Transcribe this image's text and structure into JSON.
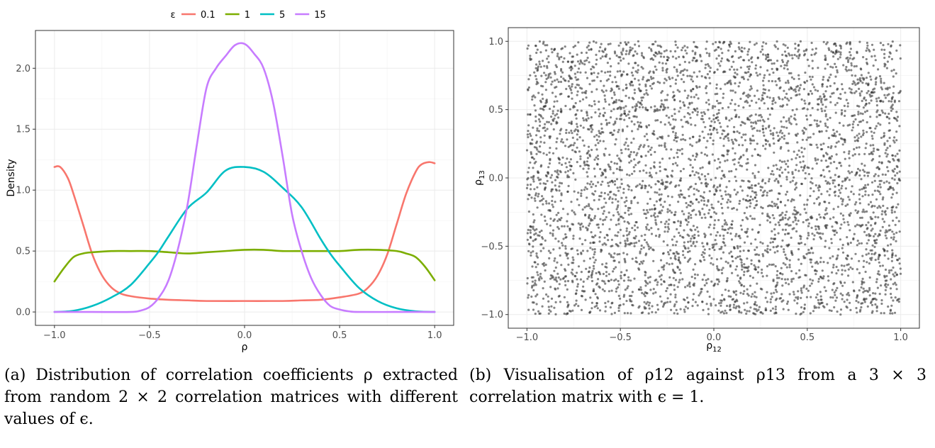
{
  "chart_data": [
    {
      "type": "line",
      "title": "",
      "xlabel": "ρ",
      "ylabel": "Density",
      "xlim": [
        -1.1,
        1.1
      ],
      "ylim": [
        -0.11,
        2.31
      ],
      "xticks": [
        -1.0,
        -0.5,
        0.0,
        0.5,
        1.0
      ],
      "xtick_labels": [
        "-1.0",
        "-0.5",
        "0.0",
        "0.5",
        "1.0"
      ],
      "yticks": [
        0.0,
        0.5,
        1.0,
        1.5,
        2.0
      ],
      "ytick_labels": [
        "0.0",
        "0.5",
        "1.0",
        "1.5",
        "2.0"
      ],
      "grid": true,
      "legend": {
        "title": "ε",
        "placement": "top",
        "labels": [
          "0.1",
          "1",
          "5",
          "15"
        ]
      },
      "series": [
        {
          "name": "0.1",
          "color": "#F8766D",
          "x": [
            -1.0,
            -0.97,
            -0.93,
            -0.9,
            -0.85,
            -0.8,
            -0.75,
            -0.7,
            -0.65,
            -0.6,
            -0.5,
            -0.4,
            -0.3,
            -0.2,
            0.0,
            0.2,
            0.3,
            0.4,
            0.5,
            0.6,
            0.65,
            0.7,
            0.75,
            0.8,
            0.85,
            0.9,
            0.93,
            0.97,
            1.0
          ],
          "y": [
            1.19,
            1.19,
            1.1,
            0.97,
            0.72,
            0.47,
            0.3,
            0.2,
            0.15,
            0.13,
            0.11,
            0.1,
            0.095,
            0.09,
            0.09,
            0.09,
            0.095,
            0.1,
            0.12,
            0.15,
            0.2,
            0.3,
            0.47,
            0.72,
            0.97,
            1.15,
            1.21,
            1.23,
            1.22
          ]
        },
        {
          "name": "1",
          "color": "#7CAE00",
          "x": [
            -1.0,
            -0.95,
            -0.9,
            -0.85,
            -0.8,
            -0.7,
            -0.6,
            -0.5,
            -0.4,
            -0.3,
            -0.2,
            -0.1,
            0.0,
            0.1,
            0.2,
            0.3,
            0.4,
            0.5,
            0.6,
            0.7,
            0.8,
            0.85,
            0.9,
            0.95,
            1.0
          ],
          "y": [
            0.25,
            0.36,
            0.45,
            0.48,
            0.49,
            0.5,
            0.5,
            0.5,
            0.49,
            0.48,
            0.49,
            0.5,
            0.51,
            0.51,
            0.5,
            0.5,
            0.5,
            0.5,
            0.51,
            0.51,
            0.5,
            0.48,
            0.45,
            0.37,
            0.26
          ]
        },
        {
          "name": "5",
          "color": "#00BFC4",
          "x": [
            -1.0,
            -0.9,
            -0.8,
            -0.7,
            -0.6,
            -0.5,
            -0.45,
            -0.4,
            -0.3,
            -0.2,
            -0.1,
            0.0,
            0.1,
            0.2,
            0.3,
            0.4,
            0.45,
            0.5,
            0.6,
            0.7,
            0.8,
            0.9,
            1.0
          ],
          "y": [
            0.0,
            0.01,
            0.05,
            0.12,
            0.22,
            0.4,
            0.5,
            0.62,
            0.85,
            0.98,
            1.16,
            1.19,
            1.15,
            1.02,
            0.86,
            0.6,
            0.48,
            0.38,
            0.2,
            0.09,
            0.03,
            0.005,
            0.0
          ]
        },
        {
          "name": "15",
          "color": "#C77CFF",
          "x": [
            -1.0,
            -0.8,
            -0.6,
            -0.55,
            -0.5,
            -0.45,
            -0.4,
            -0.35,
            -0.3,
            -0.25,
            -0.2,
            -0.15,
            -0.1,
            -0.05,
            0.0,
            0.05,
            0.1,
            0.15,
            0.2,
            0.25,
            0.3,
            0.35,
            0.4,
            0.45,
            0.5,
            0.55,
            0.6,
            0.8,
            1.0
          ],
          "y": [
            0.0,
            0.0,
            0.0,
            0.01,
            0.04,
            0.12,
            0.26,
            0.52,
            0.88,
            1.38,
            1.84,
            2.0,
            2.1,
            2.19,
            2.2,
            2.12,
            2.0,
            1.72,
            1.28,
            0.8,
            0.5,
            0.28,
            0.14,
            0.05,
            0.02,
            0.005,
            0.0,
            0.0,
            0.0
          ]
        }
      ]
    },
    {
      "type": "scatter",
      "title": "",
      "xlabel": "ρ",
      "xlabel_sub": "12",
      "ylabel": "ρ",
      "ylabel_sub": "13",
      "xlim": [
        -1.1,
        1.1
      ],
      "ylim": [
        -1.1,
        1.1
      ],
      "xticks": [
        -1.0,
        -0.5,
        0.0,
        0.5,
        1.0
      ],
      "xtick_labels": [
        "-1.0",
        "-0.5",
        "0.0",
        "0.5",
        "1.0"
      ],
      "yticks": [
        -1.0,
        -0.5,
        0.0,
        0.5,
        1.0
      ],
      "ytick_labels": [
        "-1.0",
        "-0.5",
        "0.0",
        "0.5",
        "1.0"
      ],
      "grid": true,
      "n_points": 4500,
      "point_color": "#333333"
    }
  ],
  "captions": {
    "left": "(a) Distribution of correlation coefficients ρ extracted from random 2 × 2 correlation matrices with different values of ϵ.",
    "right": "(b) Visualisation of ρ12 against ρ13 from a 3 × 3 correlation matrix with ϵ = 1."
  }
}
